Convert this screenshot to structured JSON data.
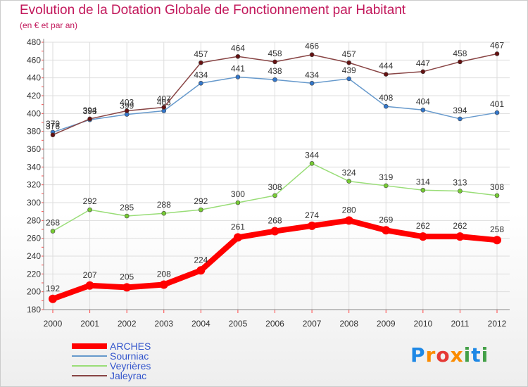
{
  "header": {
    "title": "Evolution de la Dotation Globale de Fonctionnement par Habitant",
    "subtitle": "(en € et par an)"
  },
  "logo": {
    "text": "Proxiti",
    "colors": [
      "#1e88e5",
      "#fb8c00",
      "#e53935",
      "#fb8c00",
      "#43a047",
      "#1e88e5",
      "#43a047"
    ]
  },
  "chart_data": {
    "type": "line",
    "x": [
      "2000",
      "2001",
      "2002",
      "2003",
      "2004",
      "2005",
      "2006",
      "2007",
      "2008",
      "2009",
      "2010",
      "2011",
      "2012"
    ],
    "ylim": [
      180,
      480
    ],
    "yticks": [
      180,
      200,
      220,
      240,
      260,
      280,
      300,
      320,
      340,
      360,
      380,
      400,
      420,
      440,
      460,
      480
    ],
    "grid": true,
    "legend": "bottom-left",
    "series": [
      {
        "name": "ARCHES",
        "values": [
          192,
          207,
          205,
          208,
          224,
          261,
          268,
          274,
          280,
          269,
          262,
          262,
          258
        ],
        "labels": [
          "192",
          "207",
          "205",
          "208",
          "224",
          "261",
          "268",
          "274",
          "280",
          "269",
          "262",
          "262",
          "258"
        ],
        "color": "#ff0000",
        "marker": "#ff0000",
        "emphasis": true
      },
      {
        "name": "Sourniac",
        "values": [
          379,
          393,
          399,
          403,
          434,
          441,
          438,
          434,
          439,
          408,
          404,
          394,
          401
        ],
        "labels": [
          "379",
          "393",
          "399",
          "403",
          "434",
          "441",
          "438",
          "434",
          "439",
          "408",
          "404",
          "394",
          "401"
        ],
        "color": "#6699cc",
        "marker": "#3377cc",
        "emphasis": false
      },
      {
        "name": "Veyrières",
        "values": [
          268,
          292,
          285,
          288,
          292,
          300,
          308,
          344,
          324,
          319,
          314,
          313,
          308
        ],
        "labels": [
          "268",
          "292",
          "285",
          "288",
          "292",
          "300",
          "308",
          "344",
          "324",
          "319",
          "314",
          "313",
          "308"
        ],
        "color": "#99dd77",
        "marker": "#77cc33",
        "emphasis": false
      },
      {
        "name": "Jaleyrac",
        "values": [
          376,
          394,
          403,
          407,
          457,
          464,
          458,
          466,
          457,
          444,
          447,
          458,
          467
        ],
        "labels": [
          "376",
          "394",
          "403",
          "407",
          "457",
          "464",
          "458",
          "466",
          "457",
          "444",
          "447",
          "458",
          "467"
        ],
        "color": "#884444",
        "marker": "#661111",
        "emphasis": false
      }
    ]
  }
}
